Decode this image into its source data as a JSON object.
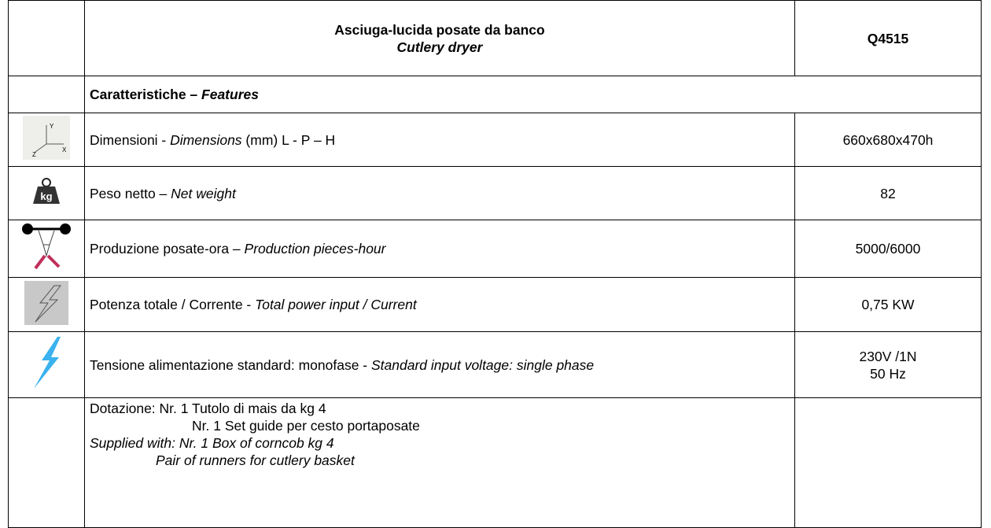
{
  "header": {
    "title": "Asciuga-lucida posate da banco",
    "subtitle": "Cutlery dryer",
    "model": "Q4515"
  },
  "section": [
    {
      "text": "Caratteristiche – ",
      "italic": false
    },
    {
      "text": "Features",
      "italic": true
    }
  ],
  "rows": [
    {
      "label": [
        {
          "text": "Dimensioni - ",
          "italic": false
        },
        {
          "text": "Dimensions",
          "italic": true
        },
        {
          "text": " (mm) L - P – H",
          "italic": false
        }
      ],
      "value": [
        "660x680x470h"
      ]
    },
    {
      "label": [
        {
          "text": "Peso netto – ",
          "italic": false
        },
        {
          "text": "Net weight",
          "italic": true
        }
      ],
      "value": [
        "82"
      ]
    },
    {
      "label": [
        {
          "text": "Produzione posate-ora – ",
          "italic": false
        },
        {
          "text": "Production pieces-hour",
          "italic": true
        }
      ],
      "value": [
        "5000/6000"
      ]
    },
    {
      "label": [
        {
          "text": "Potenza totale / Corrente - ",
          "italic": false
        },
        {
          "text": "Total power input / Current",
          "italic": true
        }
      ],
      "value": [
        "0,75 KW"
      ]
    },
    {
      "label": [
        {
          "text": "Tensione alimentazione standard: monofase - ",
          "italic": false
        },
        {
          "text": "Standard input voltage: single phase",
          "italic": true
        }
      ],
      "value": [
        "230V /1N",
        "50 Hz"
      ]
    }
  ],
  "supplied": [
    {
      "text": "Dotazione: Nr. 1 Tutolo di mais da kg 4",
      "italic": false
    },
    {
      "text": "Nr. 1 Set guide per cesto portaposate",
      "italic": false
    },
    {
      "text": "Supplied with: Nr. 1 Box of corncob kg 4",
      "italic": true
    },
    {
      "text": "Pair of runners for cutlery basket",
      "italic": true
    }
  ]
}
